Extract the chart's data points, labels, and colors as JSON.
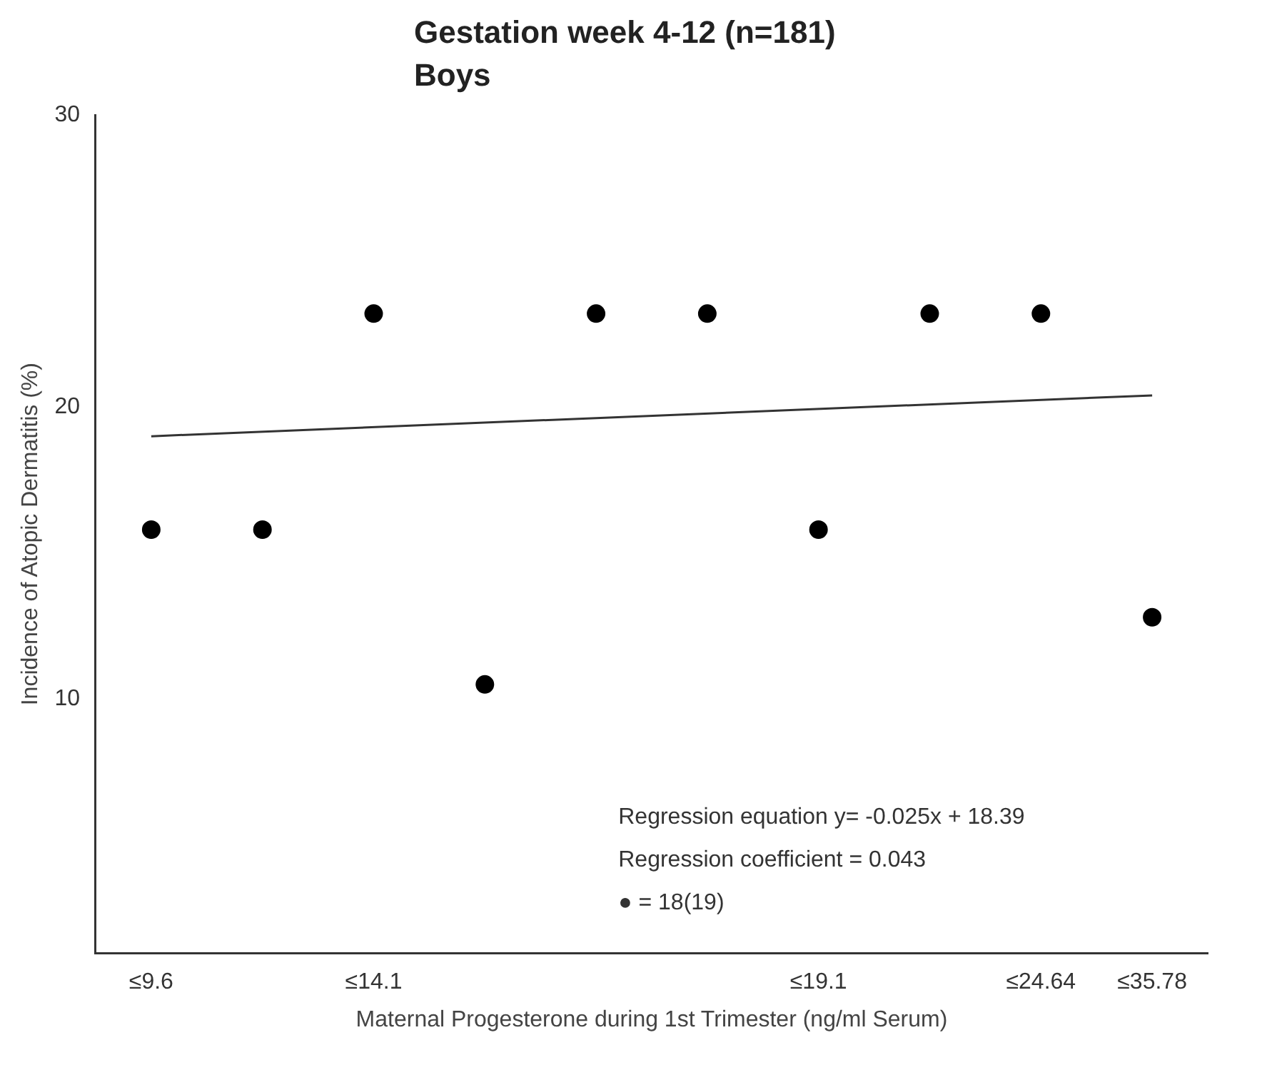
{
  "chart_data": {
    "type": "scatter",
    "title": "Gestation week 4-12 (n=181)",
    "subtitle": "Boys",
    "xlabel": "Maternal Progesterone during 1st Trimester (ng/ml Serum)",
    "ylabel": "Incidence of Atopic Dermatitis (%)",
    "categories": [
      "≤9.6",
      null,
      "≤14.1",
      null,
      null,
      null,
      "≤19.1",
      null,
      "≤24.64",
      "≤35.78"
    ],
    "series": [
      {
        "color": "#000000",
        "marker": "circle",
        "values": [
          15.8,
          15.8,
          23.2,
          10.5,
          23.2,
          23.2,
          15.8,
          23.2,
          23.2,
          12.8
        ]
      },
      {
        "type": "line",
        "color": "#333333",
        "line_style": "solid",
        "marker": "none",
        "values": [
          19.0,
          null,
          null,
          null,
          null,
          null,
          null,
          null,
          null,
          20.4
        ]
      }
    ],
    "ylim": [
      1.3,
      30
    ],
    "yticks": [
      10,
      20,
      30
    ],
    "grid": false,
    "legend": false,
    "annotations": [
      "Regression equation y= -0.025x + 18.39",
      "Regression coefficient = 0.043",
      "● = 18(19)"
    ]
  }
}
